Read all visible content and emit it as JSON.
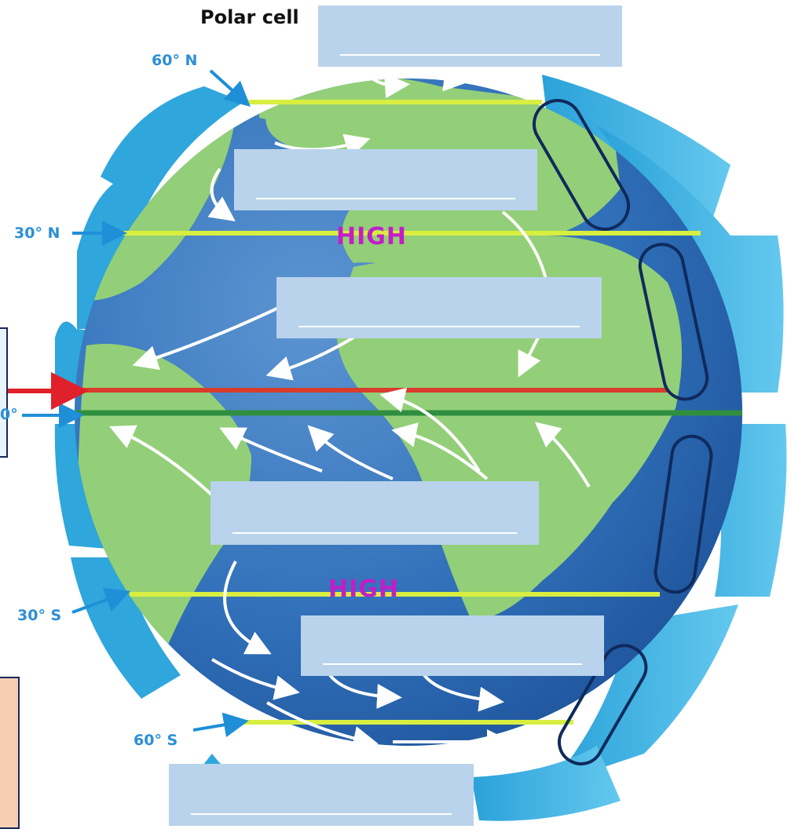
{
  "header": {
    "title": "Polar cell"
  },
  "latitudes": {
    "n60": "60° N",
    "n30": "30° N",
    "eq": "0°",
    "s30": "30° S",
    "s60": "60° S"
  },
  "pressure": {
    "north": "HIGH",
    "south": "HIGH"
  },
  "blanks": [
    "",
    "",
    "",
    "",
    "",
    ""
  ],
  "colors": {
    "ocean": "#2f6fb8",
    "land": "#93cf78",
    "cell": "#3fb3e3",
    "latitude_line": "#d8ee40",
    "itcz": "#2f8f3f",
    "red_line": "#d83c2c",
    "label": "#2b8fd6",
    "pressure": "#c21ec8",
    "blank": "#b9d3ec"
  }
}
